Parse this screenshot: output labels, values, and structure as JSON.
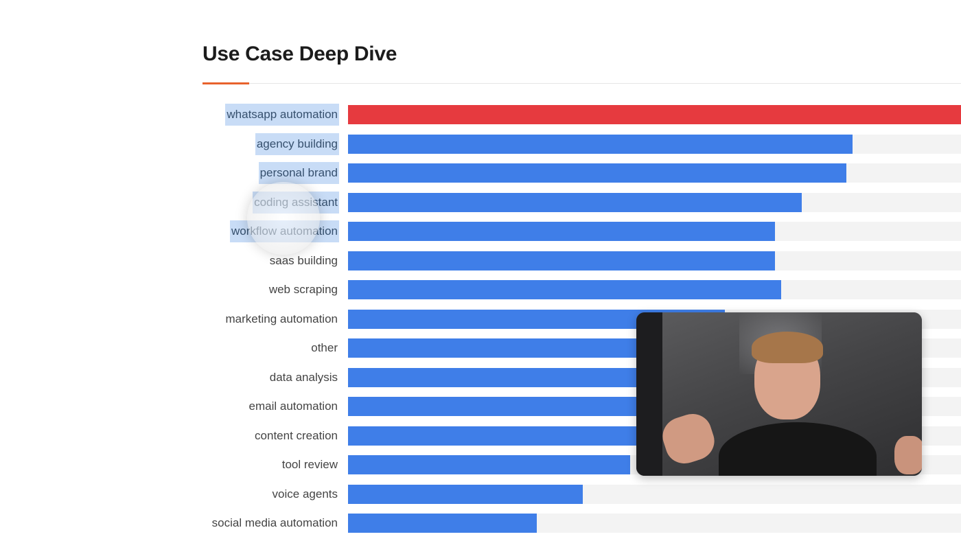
{
  "page": {
    "title": "Use Case Deep Dive"
  },
  "colors": {
    "top_bar": "#e63a3f",
    "bar": "#3f7ee8",
    "track": "#f3f3f3",
    "accent_underline": "#e8622c",
    "label_selection": "#c8dcf6"
  },
  "chart_data": {
    "type": "bar",
    "orientation": "horizontal",
    "categories": [
      "whatsapp automation",
      "agency building",
      "personal brand",
      "coding assistant",
      "workflow automation",
      "saas building",
      "web scraping",
      "marketing automation",
      "other",
      "data analysis",
      "email automation",
      "content creation",
      "tool review",
      "voice agents",
      "social media automation"
    ],
    "values": [
      1.0,
      0.823,
      0.813,
      0.74,
      0.697,
      0.697,
      0.707,
      0.615,
      0.59,
      0.555,
      0.52,
      0.49,
      0.46,
      0.383,
      0.308
    ],
    "value_scale": "fraction of top bar",
    "selected_labels": [
      0,
      1,
      2,
      3,
      4
    ]
  },
  "overlays": {
    "webcam": "presenter-webcam",
    "cursor": "cursor-highlight"
  }
}
